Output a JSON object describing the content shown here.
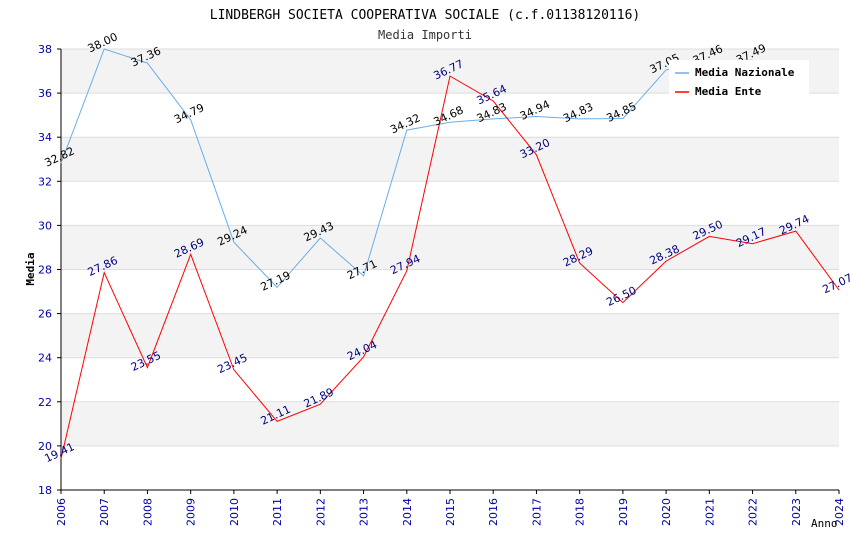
{
  "chart_data": {
    "type": "line",
    "title": "LINDBERGH SOCIETA COOPERATIVA SOCIALE (c.f.01138120116)",
    "subtitle": "Media Importi",
    "xlabel": "Anno",
    "ylabel": "Media",
    "ylim": [
      18,
      38
    ],
    "yticks": [
      "18",
      "20",
      "22",
      "24",
      "26",
      "28",
      "30",
      "32",
      "34",
      "36",
      "38"
    ],
    "x": [
      "2006",
      "2007",
      "2008",
      "2009",
      "2010",
      "2011",
      "2012",
      "2013",
      "2014",
      "2015",
      "2016",
      "2017",
      "2018",
      "2019",
      "2020",
      "2021",
      "2022",
      "2023",
      "2024"
    ],
    "grid": "horizontal-bands",
    "legend_position": "top-right",
    "series": [
      {
        "name": "Media Nazionale",
        "color": "#6aaee8",
        "label_color": "#000000",
        "values": [
          32.82,
          38.0,
          37.36,
          34.79,
          29.24,
          27.19,
          29.43,
          27.71,
          34.32,
          34.68,
          34.83,
          34.94,
          34.83,
          34.85,
          37.05,
          37.46,
          37.49,
          null,
          null
        ],
        "labels": [
          "32.82",
          "38.00",
          "37.36",
          "34.79",
          "29.24",
          "27.19",
          "29.43",
          "27.71",
          "34.32",
          "34.68",
          "34.83",
          "34.94",
          "34.83",
          "34.85",
          "37.05",
          "37.46",
          "37.49",
          "",
          ""
        ]
      },
      {
        "name": "Media Ente",
        "color": "#ff0000",
        "label_color": "#000080",
        "values": [
          19.41,
          27.86,
          23.55,
          28.69,
          23.45,
          21.11,
          21.89,
          24.04,
          27.94,
          36.77,
          35.64,
          33.2,
          28.29,
          26.5,
          28.38,
          29.5,
          29.17,
          29.74,
          27.07
        ],
        "labels": [
          "19.41",
          "27.86",
          "23.55",
          "28.69",
          "23.45",
          "21.11",
          "21.89",
          "24.04",
          "27.94",
          "36.77",
          "35.64",
          "33.20",
          "28.29",
          "26.50",
          "28.38",
          "29.50",
          "29.17",
          "29.74",
          "27.07"
        ]
      }
    ]
  }
}
